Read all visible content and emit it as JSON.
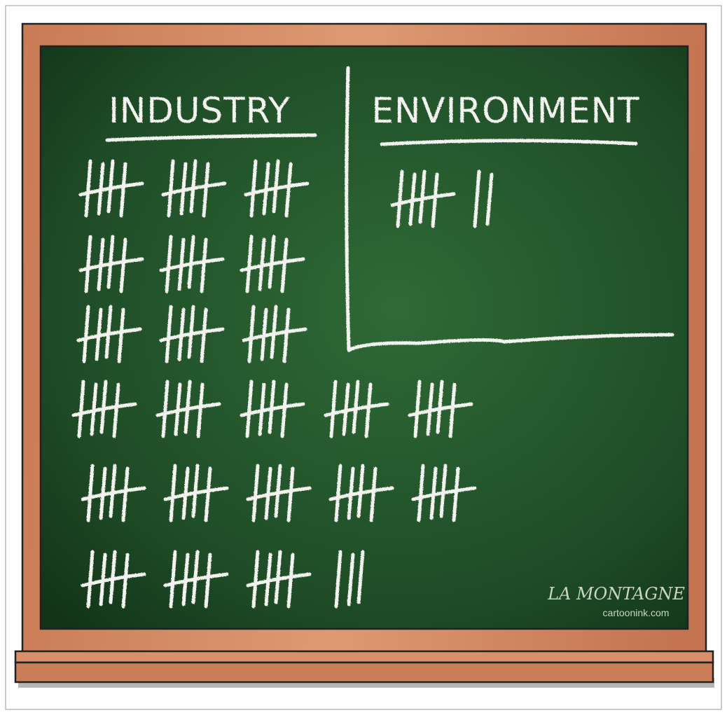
{
  "board": {
    "columns": [
      {
        "title": "INDUSTRY",
        "tallies": [
          [
            5,
            5,
            5
          ],
          [
            5,
            5,
            5
          ],
          [
            5,
            5,
            5
          ],
          [
            5,
            5,
            5,
            5,
            5
          ],
          [
            5,
            5,
            5,
            5,
            5
          ],
          [
            5,
            5,
            5,
            3
          ]
        ]
      },
      {
        "title": "ENVIRONMENT",
        "tallies": [
          [
            5,
            2
          ]
        ]
      }
    ],
    "signature": "LA MONTAGNE",
    "credit": "cartoonink.com"
  }
}
